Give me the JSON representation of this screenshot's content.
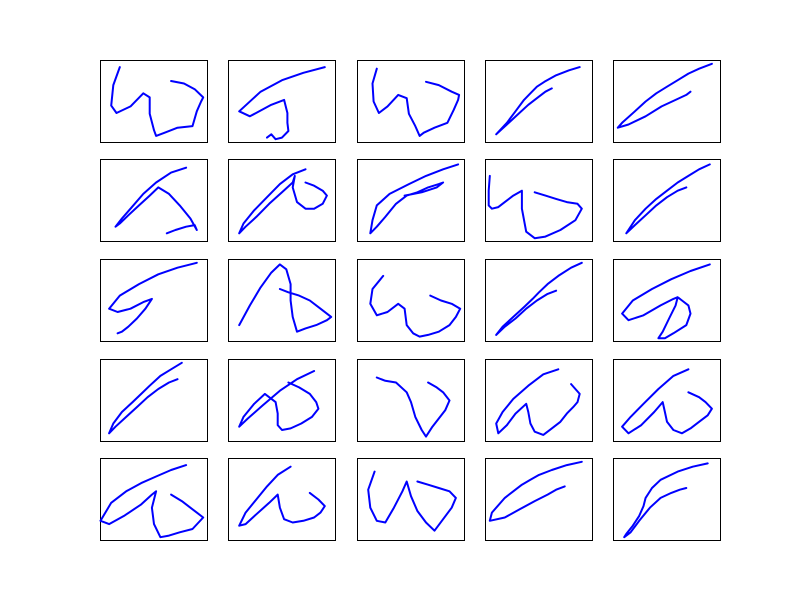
{
  "chart_data": {
    "type": "line",
    "layout": {
      "rows": 5,
      "cols": 5
    },
    "axes_visible": false,
    "grid": false,
    "line_color": "#0000ff",
    "xlim": [
      0,
      100
    ],
    "ylim": [
      0,
      100
    ],
    "panels": [
      {
        "x": [
          18,
          12,
          10,
          15,
          28,
          40,
          46,
          46,
          50,
          52,
          60,
          72,
          86,
          90,
          94,
          96,
          88,
          78,
          66
        ],
        "y": [
          92,
          70,
          45,
          36,
          44,
          60,
          55,
          35,
          15,
          8,
          12,
          18,
          20,
          38,
          50,
          55,
          65,
          72,
          75
        ]
      },
      {
        "x": [
          90,
          70,
          50,
          30,
          10,
          20,
          40,
          52,
          55,
          55,
          56,
          50,
          44,
          40,
          36
        ],
        "y": [
          92,
          85,
          76,
          62,
          38,
          32,
          46,
          52,
          36,
          24,
          14,
          6,
          4,
          10,
          6
        ]
      },
      {
        "x": [
          18,
          14,
          15,
          20,
          28,
          38,
          46,
          48,
          54,
          58,
          62,
          72,
          84,
          90,
          94,
          95,
          88,
          76,
          64
        ],
        "y": [
          90,
          72,
          50,
          36,
          44,
          58,
          54,
          35,
          20,
          8,
          12,
          18,
          24,
          40,
          52,
          58,
          62,
          70,
          74
        ]
      },
      {
        "x": [
          88,
          78,
          66,
          55,
          48,
          42,
          36,
          28,
          20,
          10,
          20,
          30,
          40,
          50,
          56,
          62
        ],
        "y": [
          92,
          88,
          82,
          74,
          68,
          60,
          52,
          38,
          24,
          10,
          22,
          34,
          46,
          56,
          62,
          66
        ]
      },
      {
        "x": [
          92,
          80,
          70,
          60,
          50,
          40,
          30,
          20,
          8,
          4,
          14,
          30,
          45,
          58,
          68,
          72
        ],
        "y": [
          96,
          90,
          84,
          76,
          68,
          60,
          50,
          38,
          24,
          18,
          22,
          32,
          44,
          52,
          58,
          62
        ]
      },
      {
        "x": [
          80,
          66,
          52,
          40,
          28,
          20,
          14,
          18,
          26,
          36,
          46,
          54,
          64,
          74,
          84,
          90,
          88,
          80,
          70,
          62
        ],
        "y": [
          90,
          84,
          72,
          58,
          40,
          28,
          18,
          22,
          32,
          44,
          56,
          66,
          58,
          44,
          28,
          14,
          20,
          18,
          14,
          10
        ]
      },
      {
        "x": [
          72,
          60,
          48,
          36,
          24,
          14,
          10,
          16,
          26,
          38,
          50,
          60,
          62,
          60,
          64,
          72,
          80,
          88,
          92,
          88,
          80,
          72
        ],
        "y": [
          88,
          82,
          70,
          54,
          38,
          22,
          10,
          18,
          30,
          46,
          60,
          72,
          80,
          66,
          48,
          40,
          40,
          46,
          56,
          62,
          68,
          72
        ]
      },
      {
        "x": [
          94,
          80,
          64,
          48,
          30,
          18,
          14,
          12,
          18,
          26,
          36,
          46,
          56,
          66,
          76,
          80,
          74,
          60,
          44
        ],
        "y": [
          94,
          88,
          80,
          70,
          58,
          44,
          26,
          10,
          18,
          30,
          46,
          56,
          60,
          66,
          70,
          72,
          66,
          60,
          56
        ]
      },
      {
        "x": [
          4,
          3,
          3,
          6,
          12,
          18,
          26,
          34,
          34,
          38,
          46,
          56,
          70,
          84,
          90,
          86,
          76,
          66,
          56,
          46
        ],
        "y": [
          80,
          62,
          44,
          40,
          42,
          48,
          56,
          62,
          40,
          12,
          4,
          6,
          14,
          26,
          40,
          46,
          48,
          52,
          56,
          60
        ]
      },
      {
        "x": [
          90,
          80,
          70,
          60,
          50,
          40,
          30,
          20,
          12,
          20,
          30,
          40,
          50,
          60,
          68
        ],
        "y": [
          94,
          88,
          80,
          72,
          62,
          52,
          40,
          26,
          10,
          20,
          32,
          44,
          54,
          62,
          66
        ]
      },
      {
        "x": [
          90,
          72,
          54,
          36,
          18,
          8,
          16,
          28,
          40,
          48,
          42,
          34,
          26,
          20,
          16
        ],
        "y": [
          96,
          90,
          82,
          70,
          56,
          40,
          36,
          40,
          48,
          52,
          40,
          28,
          18,
          12,
          10
        ]
      },
      {
        "x": [
          10,
          20,
          30,
          40,
          48,
          54,
          58,
          58,
          60,
          64,
          72,
          82,
          92,
          96,
          86,
          76,
          66,
          56,
          48
        ],
        "y": [
          20,
          44,
          66,
          84,
          94,
          88,
          70,
          50,
          30,
          12,
          16,
          20,
          26,
          30,
          40,
          50,
          56,
          60,
          64
        ]
      },
      {
        "x": [
          24,
          14,
          12,
          18,
          28,
          38,
          44,
          46,
          52,
          58,
          66,
          76,
          86,
          92,
          96,
          88,
          78,
          68
        ],
        "y": [
          80,
          64,
          46,
          32,
          36,
          46,
          40,
          20,
          10,
          6,
          8,
          12,
          20,
          30,
          40,
          46,
          50,
          56
        ]
      },
      {
        "x": [
          90,
          80,
          68,
          58,
          50,
          44,
          36,
          26,
          16,
          10,
          18,
          28,
          38,
          48,
          58,
          66
        ],
        "y": [
          96,
          90,
          80,
          70,
          60,
          52,
          42,
          30,
          18,
          8,
          18,
          28,
          40,
          50,
          58,
          62
        ]
      },
      {
        "x": [
          90,
          72,
          54,
          36,
          18,
          8,
          14,
          28,
          44,
          56,
          60,
          64,
          70,
          72,
          68,
          56,
          48,
          42,
          46,
          52,
          58,
          60
        ],
        "y": [
          94,
          86,
          76,
          64,
          50,
          34,
          26,
          32,
          44,
          52,
          54,
          50,
          44,
          34,
          20,
          10,
          4,
          4,
          12,
          28,
          44,
          54
        ]
      },
      {
        "x": [
          76,
          66,
          56,
          46,
          38,
          30,
          20,
          12,
          8,
          14,
          24,
          34,
          44,
          54,
          64,
          72
        ],
        "y": [
          96,
          88,
          80,
          68,
          58,
          48,
          36,
          22,
          10,
          18,
          30,
          42,
          54,
          64,
          72,
          76
        ]
      },
      {
        "x": [
          80,
          64,
          48,
          32,
          18,
          10,
          14,
          24,
          34,
          44,
          46,
          46,
          50,
          58,
          68,
          78,
          84,
          82,
          76,
          66,
          56
        ],
        "y": [
          86,
          76,
          62,
          44,
          28,
          18,
          30,
          46,
          58,
          48,
          34,
          20,
          14,
          16,
          22,
          30,
          40,
          48,
          58,
          66,
          72
        ]
      },
      {
        "x": [
          18,
          26,
          36,
          46,
          50,
          54,
          60,
          64,
          70,
          76,
          82,
          86,
          80,
          74,
          66
        ],
        "y": [
          78,
          74,
          72,
          60,
          48,
          30,
          14,
          6,
          18,
          28,
          38,
          50,
          60,
          66,
          72
        ]
      },
      {
        "x": [
          68,
          54,
          40,
          26,
          16,
          10,
          12,
          20,
          28,
          38,
          40,
          42,
          46,
          54,
          62,
          70,
          76,
          82,
          86,
          88,
          80
        ],
        "y": [
          88,
          82,
          68,
          52,
          36,
          22,
          10,
          20,
          34,
          46,
          36,
          22,
          12,
          8,
          16,
          24,
          34,
          42,
          48,
          58,
          70
        ]
      },
      {
        "x": [
          70,
          56,
          42,
          28,
          16,
          8,
          14,
          26,
          38,
          46,
          48,
          50,
          56,
          64,
          72,
          80,
          88,
          92,
          86,
          80,
          70
        ],
        "y": [
          88,
          80,
          64,
          46,
          30,
          18,
          10,
          20,
          36,
          48,
          36,
          24,
          14,
          10,
          16,
          24,
          32,
          40,
          48,
          54,
          60
        ]
      },
      {
        "x": [
          80,
          66,
          52,
          38,
          24,
          10,
          0,
          8,
          22,
          38,
          48,
          52,
          48,
          50,
          56,
          64,
          74,
          86,
          96,
          90,
          84,
          76,
          66
        ],
        "y": [
          92,
          86,
          78,
          70,
          60,
          46,
          24,
          20,
          30,
          44,
          56,
          60,
          40,
          20,
          4,
          6,
          10,
          14,
          28,
          34,
          40,
          48,
          56
        ]
      },
      {
        "x": [
          58,
          46,
          36,
          26,
          16,
          10,
          16,
          26,
          38,
          46,
          48,
          52,
          60,
          70,
          80,
          86,
          90,
          84,
          76
        ],
        "y": [
          90,
          80,
          66,
          50,
          34,
          18,
          20,
          32,
          46,
          56,
          40,
          26,
          22,
          24,
          28,
          34,
          42,
          50,
          58
        ]
      },
      {
        "x": [
          16,
          10,
          12,
          18,
          26,
          34,
          42,
          46,
          50,
          56,
          64,
          72,
          80,
          88,
          92,
          86,
          76,
          66,
          56
        ],
        "y": [
          84,
          62,
          40,
          24,
          22,
          40,
          60,
          72,
          54,
          36,
          22,
          12,
          26,
          40,
          52,
          60,
          64,
          68,
          72
        ]
      },
      {
        "x": [
          90,
          76,
          62,
          50,
          42,
          34,
          26,
          18,
          6,
          4,
          18,
          32,
          46,
          58,
          66,
          74
        ],
        "y": [
          96,
          92,
          86,
          80,
          74,
          68,
          60,
          52,
          34,
          24,
          28,
          38,
          48,
          56,
          62,
          66
        ]
      },
      {
        "x": [
          88,
          74,
          60,
          44,
          36,
          30,
          28,
          24,
          18,
          12,
          10,
          16,
          24,
          34,
          44,
          54,
          62,
          68
        ],
        "y": [
          94,
          90,
          84,
          74,
          64,
          52,
          42,
          30,
          18,
          8,
          4,
          10,
          24,
          40,
          52,
          58,
          62,
          64
        ]
      }
    ]
  }
}
